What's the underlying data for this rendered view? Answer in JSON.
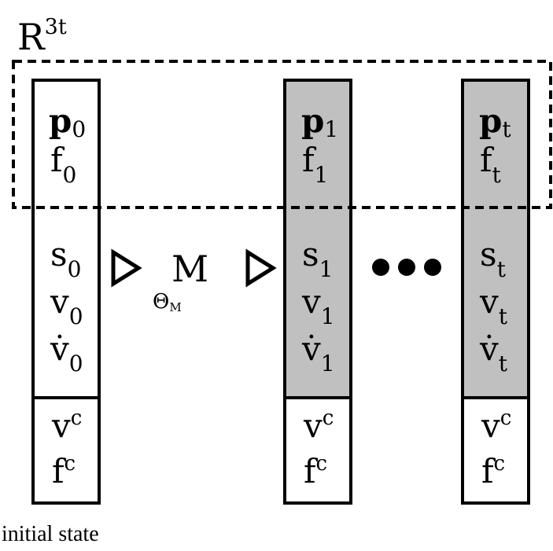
{
  "space_label": {
    "base": "R",
    "sup": "3t"
  },
  "model": {
    "label": "M",
    "param_base": "Θ",
    "param_sub": "M"
  },
  "ellipsis": "•••",
  "caption": "initial state",
  "columns": [
    {
      "shaded": false,
      "p": {
        "base": "p",
        "sub": "0"
      },
      "f": {
        "base": "f",
        "sub": "0"
      },
      "s": {
        "base": "s",
        "sub": "0"
      },
      "v": {
        "base": "v",
        "sub": "0"
      },
      "vdot": {
        "base": "v̇",
        "sub": "0"
      },
      "vc": {
        "base": "v",
        "sup": "c"
      },
      "fc": {
        "base": "f",
        "sup": "c"
      }
    },
    {
      "shaded": true,
      "p": {
        "base": "p",
        "sub": "1"
      },
      "f": {
        "base": "f",
        "sub": "1"
      },
      "s": {
        "base": "s",
        "sub": "1"
      },
      "v": {
        "base": "v",
        "sub": "1"
      },
      "vdot": {
        "base": "v̇",
        "sub": "1"
      },
      "vc": {
        "base": "v",
        "sup": "c"
      },
      "fc": {
        "base": "f",
        "sup": "c"
      }
    },
    {
      "shaded": true,
      "p": {
        "base": "p",
        "sub": "t"
      },
      "f": {
        "base": "f",
        "sub": "t"
      },
      "s": {
        "base": "s",
        "sub": "t"
      },
      "v": {
        "base": "v",
        "sub": "t"
      },
      "vdot": {
        "base": "v̇",
        "sub": "t"
      },
      "vc": {
        "base": "v",
        "sup": "c"
      },
      "fc": {
        "base": "f",
        "sup": "c"
      }
    }
  ],
  "colors": {
    "shade": "#c0c0c0",
    "stroke": "#000000"
  }
}
